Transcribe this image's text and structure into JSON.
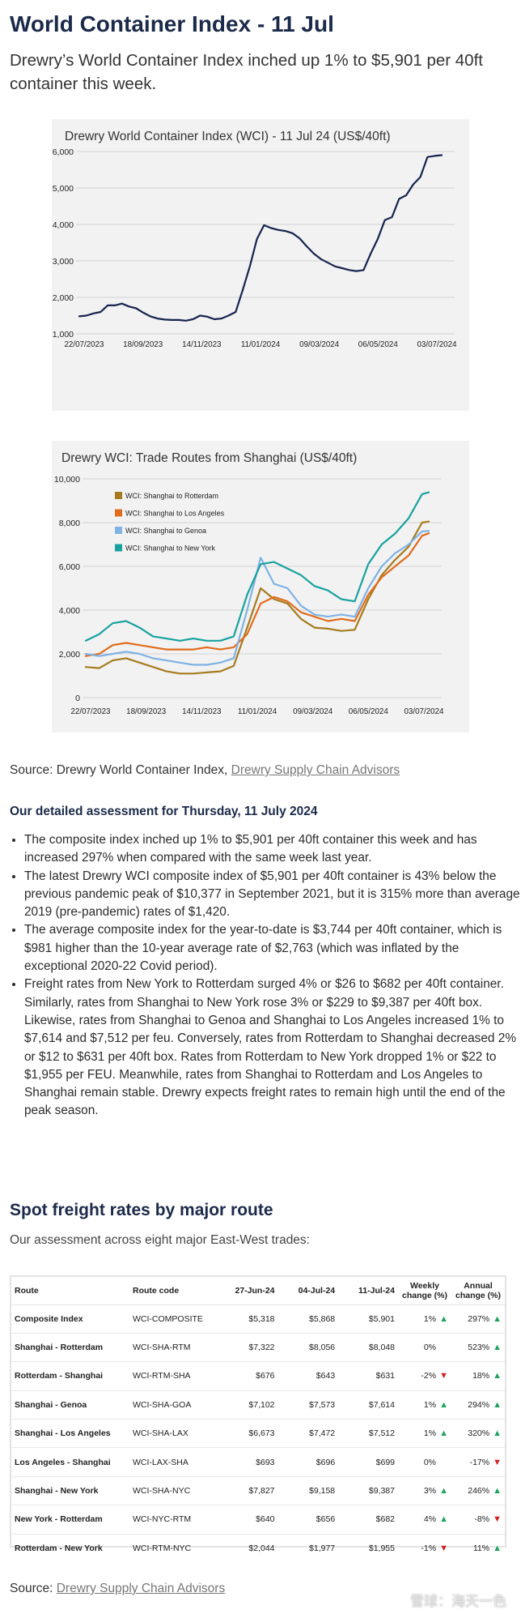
{
  "page": {
    "title": "World Container Index - 11 Jul",
    "subtitle": "Drewry’s World Container Index inched up 1% to $5,901 per 40ft container this week."
  },
  "chart_data": [
    {
      "type": "line",
      "title": "Drewry World Container Index (WCI) - 11 Jul 24 (US$/40ft)",
      "x_tick_labels": [
        "22/07/2023",
        "18/09/2023",
        "14/11/2023",
        "11/01/2024",
        "09/03/2024",
        "06/05/2024",
        "03/07/2024"
      ],
      "y_tick_labels": [
        "1,000",
        "2,000",
        "3,000",
        "4,000",
        "5,000",
        "6,000"
      ],
      "ylim": [
        1000,
        6000
      ],
      "grid": "horizontal",
      "series": [
        {
          "color": "#16244f",
          "points": [
            [
              0,
              1480
            ],
            [
              1,
              1500
            ],
            [
              2,
              1560
            ],
            [
              3,
              1600
            ],
            [
              4,
              1780
            ],
            [
              5,
              1780
            ],
            [
              6,
              1830
            ],
            [
              7,
              1750
            ],
            [
              8,
              1700
            ],
            [
              9,
              1580
            ],
            [
              10,
              1480
            ],
            [
              11,
              1420
            ],
            [
              12,
              1390
            ],
            [
              13,
              1380
            ],
            [
              14,
              1380
            ],
            [
              15,
              1360
            ],
            [
              16,
              1400
            ],
            [
              17,
              1500
            ],
            [
              18,
              1470
            ],
            [
              19,
              1400
            ],
            [
              20,
              1420
            ],
            [
              21,
              1500
            ],
            [
              22,
              1600
            ],
            [
              23,
              2200
            ],
            [
              24,
              2850
            ],
            [
              25,
              3600
            ],
            [
              26,
              3980
            ],
            [
              27,
              3900
            ],
            [
              28,
              3850
            ],
            [
              29,
              3820
            ],
            [
              30,
              3760
            ],
            [
              31,
              3620
            ],
            [
              32,
              3400
            ],
            [
              33,
              3200
            ],
            [
              34,
              3050
            ],
            [
              35,
              2950
            ],
            [
              36,
              2850
            ],
            [
              37,
              2800
            ],
            [
              38,
              2750
            ],
            [
              39,
              2720
            ],
            [
              40,
              2750
            ],
            [
              41,
              3200
            ],
            [
              42,
              3600
            ],
            [
              43,
              4120
            ],
            [
              44,
              4200
            ],
            [
              45,
              4700
            ],
            [
              46,
              4800
            ],
            [
              47,
              5100
            ],
            [
              48,
              5300
            ],
            [
              49,
              5850
            ],
            [
              50,
              5880
            ],
            [
              51,
              5901
            ]
          ]
        }
      ]
    },
    {
      "type": "line",
      "title": "Drewry WCI: Trade Routes from Shanghai (US$/40ft)",
      "x_tick_labels": [
        "22/07/2023",
        "18/09/2023",
        "14/11/2023",
        "11/01/2024",
        "09/03/2024",
        "06/05/2024",
        "03/07/2024"
      ],
      "y_tick_labels": [
        "0",
        "2,000",
        "4,000",
        "6,000",
        "8,000",
        "10,000"
      ],
      "ylim": [
        0,
        10000
      ],
      "legend": "top-left",
      "grid": "horizontal",
      "series": [
        {
          "name": "WCI: Shanghai to Rotterdam",
          "color": "#a57b1e",
          "points": [
            [
              0,
              1400
            ],
            [
              2,
              1350
            ],
            [
              4,
              1700
            ],
            [
              6,
              1800
            ],
            [
              8,
              1600
            ],
            [
              10,
              1400
            ],
            [
              12,
              1200
            ],
            [
              14,
              1100
            ],
            [
              16,
              1100
            ],
            [
              18,
              1150
            ],
            [
              20,
              1200
            ],
            [
              22,
              1450
            ],
            [
              24,
              3200
            ],
            [
              26,
              5000
            ],
            [
              28,
              4500
            ],
            [
              30,
              4300
            ],
            [
              32,
              3600
            ],
            [
              34,
              3200
            ],
            [
              36,
              3150
            ],
            [
              38,
              3050
            ],
            [
              40,
              3100
            ],
            [
              42,
              4500
            ],
            [
              44,
              5600
            ],
            [
              46,
              6300
            ],
            [
              48,
              6900
            ],
            [
              50,
              8000
            ],
            [
              51,
              8048
            ]
          ]
        },
        {
          "name": "WCI: Shanghai to Los Angeles",
          "color": "#e06c1d",
          "points": [
            [
              0,
              1900
            ],
            [
              2,
              2000
            ],
            [
              4,
              2400
            ],
            [
              6,
              2500
            ],
            [
              8,
              2400
            ],
            [
              10,
              2300
            ],
            [
              12,
              2200
            ],
            [
              14,
              2200
            ],
            [
              16,
              2200
            ],
            [
              18,
              2300
            ],
            [
              20,
              2200
            ],
            [
              22,
              2300
            ],
            [
              24,
              2900
            ],
            [
              26,
              4300
            ],
            [
              28,
              4600
            ],
            [
              30,
              4400
            ],
            [
              32,
              3900
            ],
            [
              34,
              3700
            ],
            [
              36,
              3500
            ],
            [
              38,
              3600
            ],
            [
              40,
              3500
            ],
            [
              42,
              4700
            ],
            [
              44,
              5500
            ],
            [
              46,
              6000
            ],
            [
              48,
              6500
            ],
            [
              50,
              7400
            ],
            [
              51,
              7512
            ]
          ]
        },
        {
          "name": "WCI: Shanghai to Genoa",
          "color": "#7fb2e5",
          "points": [
            [
              0,
              2000
            ],
            [
              2,
              1900
            ],
            [
              4,
              2000
            ],
            [
              6,
              2100
            ],
            [
              8,
              2000
            ],
            [
              10,
              1800
            ],
            [
              12,
              1700
            ],
            [
              14,
              1600
            ],
            [
              16,
              1500
            ],
            [
              18,
              1500
            ],
            [
              20,
              1600
            ],
            [
              22,
              1800
            ],
            [
              24,
              4000
            ],
            [
              26,
              6400
            ],
            [
              28,
              5200
            ],
            [
              30,
              5000
            ],
            [
              32,
              4200
            ],
            [
              34,
              3800
            ],
            [
              36,
              3700
            ],
            [
              38,
              3800
            ],
            [
              40,
              3700
            ],
            [
              42,
              5000
            ],
            [
              44,
              6000
            ],
            [
              46,
              6600
            ],
            [
              48,
              7000
            ],
            [
              50,
              7600
            ],
            [
              51,
              7614
            ]
          ]
        },
        {
          "name": "WCI: Shanghai to New York",
          "color": "#18a29e",
          "points": [
            [
              0,
              2600
            ],
            [
              2,
              2900
            ],
            [
              4,
              3400
            ],
            [
              6,
              3500
            ],
            [
              8,
              3200
            ],
            [
              10,
              2800
            ],
            [
              12,
              2700
            ],
            [
              14,
              2600
            ],
            [
              16,
              2700
            ],
            [
              18,
              2600
            ],
            [
              20,
              2600
            ],
            [
              22,
              2800
            ],
            [
              24,
              4700
            ],
            [
              26,
              6100
            ],
            [
              28,
              6200
            ],
            [
              30,
              5900
            ],
            [
              32,
              5600
            ],
            [
              34,
              5100
            ],
            [
              36,
              4900
            ],
            [
              38,
              4500
            ],
            [
              40,
              4400
            ],
            [
              42,
              6100
            ],
            [
              44,
              7000
            ],
            [
              46,
              7500
            ],
            [
              48,
              8200
            ],
            [
              50,
              9300
            ],
            [
              51,
              9387
            ]
          ]
        }
      ]
    }
  ],
  "source1": {
    "prefix": "Source: Drewry World Container Index,",
    "link": "Drewry Supply Chain Advisors"
  },
  "assessment": {
    "title": "Our detailed assessment for Thursday, 11 July 2024",
    "bullets": [
      "The composite index inched up 1% to $5,901 per 40ft container this week and has increased 297% when compared with the same week last year.",
      "The latest Drewry WCI composite index of $5,901 per 40ft container is 43% below the previous pandemic peak of $10,377 in September 2021, but it is 315% more than average 2019 (pre-pandemic) rates of $1,420.",
      "The average composite index for the year-to-date is $3,744 per 40ft container, which is $981 higher than the 10-year average rate of $2,763 (which was inflated by the exceptional 2020-22 Covid period).",
      "Freight rates from New York to Rotterdam surged 4% or $26 to $682 per 40ft container. Similarly, rates from Shanghai to New York rose 3% or $229 to $9,387 per 40ft box. Likewise, rates from Shanghai to Genoa and Shanghai to Los Angeles increased 1% to $7,614 and $7,512 per feu. Conversely, rates from Rotterdam to Shanghai decreased 2% or $12 to $631 per 40ft box. Rates from Rotterdam to New York dropped 1% or $22 to $1,955 per FEU. Meanwhile, rates from Shanghai to Rotterdam and Los Angeles to Shanghai remain stable. Drewry expects freight rates to remain high until the end of the peak season."
    ]
  },
  "spot": {
    "title": "Spot freight rates by major route",
    "subtitle": "Our assessment across eight major East-West trades:"
  },
  "table": {
    "headers": [
      "Route",
      "Route code",
      "27-Jun-24",
      "04-Jul-24",
      "11-Jul-24",
      "Weekly change (%)",
      "Annual change (%)"
    ],
    "rows": [
      [
        "Composite Index",
        "WCI-COMPOSITE",
        "$5,318",
        "$5,868",
        "$5,901",
        "1%",
        "up",
        "297%",
        "up"
      ],
      [
        "Shanghai - Rotterdam",
        "WCI-SHA-RTM",
        "$7,322",
        "$8,056",
        "$8,048",
        "0%",
        "",
        "523%",
        "up"
      ],
      [
        "Rotterdam - Shanghai",
        "WCI-RTM-SHA",
        "$676",
        "$643",
        "$631",
        "-2%",
        "down",
        "18%",
        "up"
      ],
      [
        "Shanghai - Genoa",
        "WCI-SHA-GOA",
        "$7,102",
        "$7,573",
        "$7,614",
        "1%",
        "up",
        "294%",
        "up"
      ],
      [
        "Shanghai - Los Angeles",
        "WCI-SHA-LAX",
        "$6,673",
        "$7,472",
        "$7,512",
        "1%",
        "up",
        "320%",
        "up"
      ],
      [
        "Los Angeles - Shanghai",
        "WCI-LAX-SHA",
        "$693",
        "$696",
        "$699",
        "0%",
        "",
        "-17%",
        "down"
      ],
      [
        "Shanghai - New York",
        "WCI-SHA-NYC",
        "$7,827",
        "$9,158",
        "$9,387",
        "3%",
        "up",
        "246%",
        "up"
      ],
      [
        "New York - Rotterdam",
        "WCI-NYC-RTM",
        "$640",
        "$656",
        "$682",
        "4%",
        "up",
        "-8%",
        "down"
      ],
      [
        "Rotterdam - New York",
        "WCI-RTM-NYC",
        "$2,044",
        "$1,977",
        "$1,955",
        "-1%",
        "down",
        "11%",
        "up"
      ]
    ]
  },
  "source2": {
    "prefix": "Source:",
    "link": "Drewry Supply Chain Advisors"
  },
  "watermark": "雪球：海天一色"
}
